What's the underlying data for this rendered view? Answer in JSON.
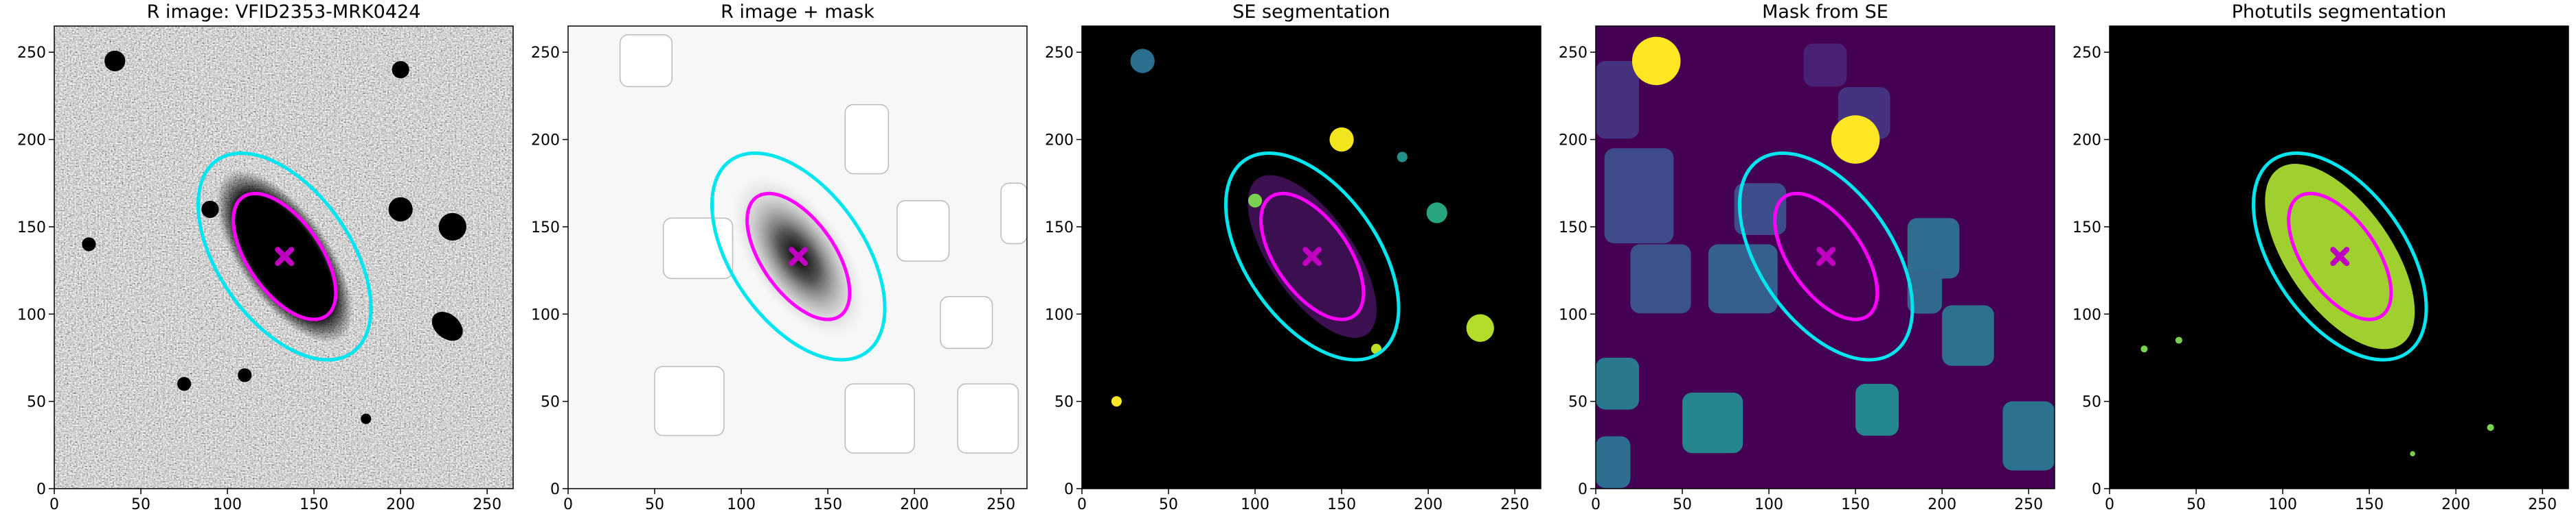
{
  "chart_data": [
    {
      "type": "image",
      "title": "R image: VFID2353-MRK0424",
      "background": "#7a7a7a",
      "xlim": [
        0,
        265
      ],
      "ylim": [
        0,
        265
      ],
      "xticks": [
        0,
        50,
        100,
        150,
        200,
        250
      ],
      "yticks": [
        0,
        50,
        100,
        150,
        200,
        250
      ],
      "ellipses": [
        {
          "color": "#00e5ee",
          "cx": 133,
          "cy": 133,
          "a": 68,
          "b": 38,
          "angle": -55
        },
        {
          "color": "#ff00ff",
          "cx": 133,
          "cy": 133,
          "a": 42,
          "b": 21,
          "angle": -55
        }
      ],
      "marker": {
        "x": 133,
        "y": 133,
        "color": "#c000c0"
      }
    },
    {
      "type": "image",
      "title": "R image + mask",
      "background": "#f7f7f7",
      "xlim": [
        0,
        265
      ],
      "ylim": [
        0,
        265
      ],
      "xticks": [
        0,
        50,
        100,
        150,
        200,
        250
      ],
      "yticks": [
        0,
        50,
        100,
        150,
        200,
        250
      ],
      "ellipses": [
        {
          "color": "#00e5ee",
          "cx": 133,
          "cy": 133,
          "a": 68,
          "b": 38,
          "angle": -55
        },
        {
          "color": "#ff00ff",
          "cx": 133,
          "cy": 133,
          "a": 42,
          "b": 21,
          "angle": -55
        }
      ],
      "marker": {
        "x": 133,
        "y": 133,
        "color": "#c000c0"
      }
    },
    {
      "type": "image",
      "title": "SE segmentation",
      "background": "#000000",
      "xlim": [
        0,
        265
      ],
      "ylim": [
        0,
        265
      ],
      "xticks": [
        0,
        50,
        100,
        150,
        200,
        250
      ],
      "yticks": [
        0,
        50,
        100,
        150,
        200,
        250
      ],
      "ellipses": [
        {
          "color": "#00e5ee",
          "cx": 133,
          "cy": 133,
          "a": 68,
          "b": 38,
          "angle": -55
        },
        {
          "color": "#ff00ff",
          "cx": 133,
          "cy": 133,
          "a": 42,
          "b": 21,
          "angle": -55
        }
      ],
      "marker": {
        "x": 133,
        "y": 133,
        "color": "#c000c0"
      }
    },
    {
      "type": "image",
      "title": "Mask from SE",
      "background": "#440154",
      "xlim": [
        0,
        265
      ],
      "ylim": [
        0,
        265
      ],
      "xticks": [
        0,
        50,
        100,
        150,
        200,
        250
      ],
      "yticks": [
        0,
        50,
        100,
        150,
        200,
        250
      ],
      "ellipses": [
        {
          "color": "#00e5ee",
          "cx": 133,
          "cy": 133,
          "a": 68,
          "b": 38,
          "angle": -55
        },
        {
          "color": "#ff00ff",
          "cx": 133,
          "cy": 133,
          "a": 42,
          "b": 21,
          "angle": -55
        }
      ],
      "marker": {
        "x": 133,
        "y": 133,
        "color": "#c000c0"
      }
    },
    {
      "type": "image",
      "title": "Photutils segmentation",
      "background": "#000000",
      "xlim": [
        0,
        265
      ],
      "ylim": [
        0,
        265
      ],
      "xticks": [
        0,
        50,
        100,
        150,
        200,
        250
      ],
      "yticks": [
        0,
        50,
        100,
        150,
        200,
        250
      ],
      "ellipses": [
        {
          "color": "#00e5ee",
          "cx": 133,
          "cy": 133,
          "a": 68,
          "b": 38,
          "angle": -55
        },
        {
          "color": "#ff00ff",
          "cx": 133,
          "cy": 133,
          "a": 42,
          "b": 21,
          "angle": -55
        }
      ],
      "marker": {
        "x": 133,
        "y": 133,
        "color": "#c000c0"
      }
    }
  ]
}
